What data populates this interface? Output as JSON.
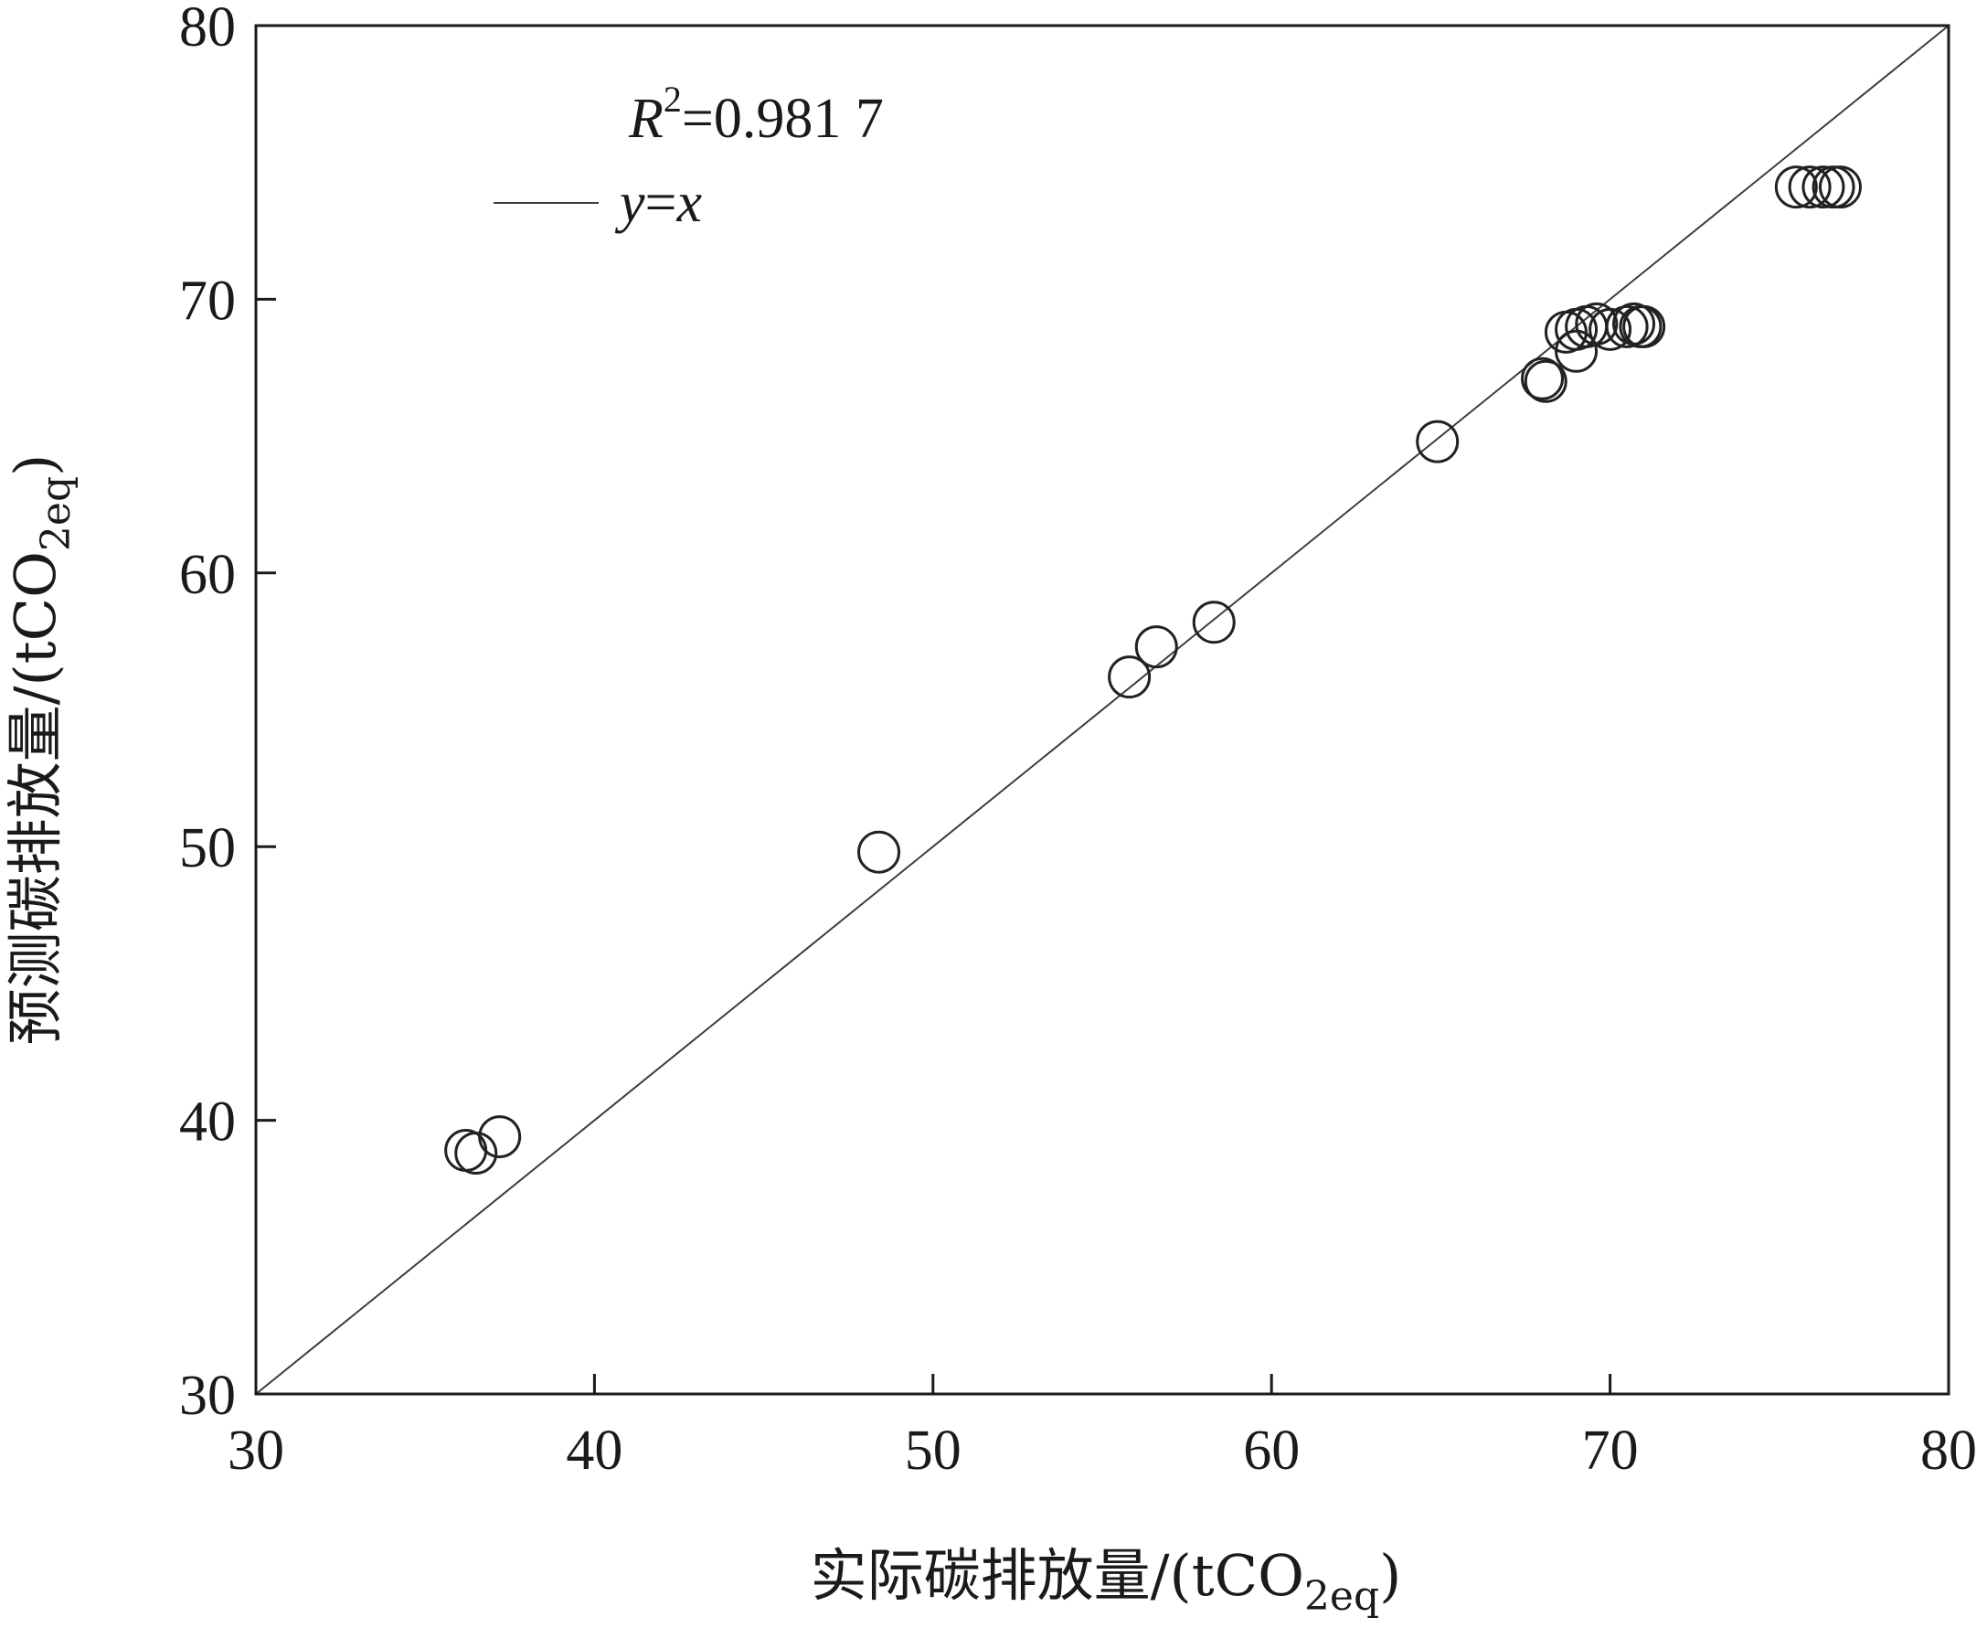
{
  "chart_data": {
    "type": "scatter",
    "xlabel": "实际碳排放量/(tCO2eq)",
    "ylabel": "预测碳排放量/(tCO2eq)",
    "xlabel_parts": {
      "main": "实际碳排放量/(tCO",
      "sub": "2eq",
      "tail": ")"
    },
    "ylabel_parts": {
      "main": "预测碳排放量/(tCO",
      "sub": "2eq",
      "tail": ")"
    },
    "xlim": [
      30,
      80
    ],
    "ylim": [
      30,
      80
    ],
    "x_ticks": [
      30,
      40,
      50,
      60,
      70,
      80
    ],
    "y_ticks": [
      30,
      40,
      50,
      60,
      70,
      80
    ],
    "grid": false,
    "legend_position": "top-left",
    "annotation": {
      "r2_symbol": "R",
      "r2_exponent": "2",
      "r2_value": "=0.981 7"
    },
    "reference_line": {
      "label_y": "y",
      "label_eq": "=",
      "label_x": "x",
      "from": [
        30,
        30
      ],
      "to": [
        80,
        80
      ],
      "color": "#3d3d3d"
    },
    "series": [
      {
        "marker": "open-circle",
        "color": "#222222",
        "points": [
          [
            36.2,
            38.9
          ],
          [
            36.5,
            38.8
          ],
          [
            37.2,
            39.4
          ],
          [
            48.4,
            49.8
          ],
          [
            55.8,
            56.2
          ],
          [
            56.6,
            57.3
          ],
          [
            58.3,
            58.2
          ],
          [
            64.9,
            64.8
          ],
          [
            68.0,
            67.1
          ],
          [
            68.1,
            67.0
          ],
          [
            68.7,
            68.8
          ],
          [
            69.0,
            68.9
          ],
          [
            69.0,
            68.1
          ],
          [
            69.3,
            69.0
          ],
          [
            69.6,
            69.1
          ],
          [
            70.0,
            68.9
          ],
          [
            70.5,
            69.0
          ],
          [
            70.7,
            69.1
          ],
          [
            70.9,
            69.0
          ],
          [
            71.0,
            69.0
          ],
          [
            75.5,
            74.1
          ],
          [
            75.9,
            74.1
          ],
          [
            76.3,
            74.1
          ],
          [
            76.6,
            74.1
          ],
          [
            76.8,
            74.1
          ]
        ]
      }
    ]
  }
}
